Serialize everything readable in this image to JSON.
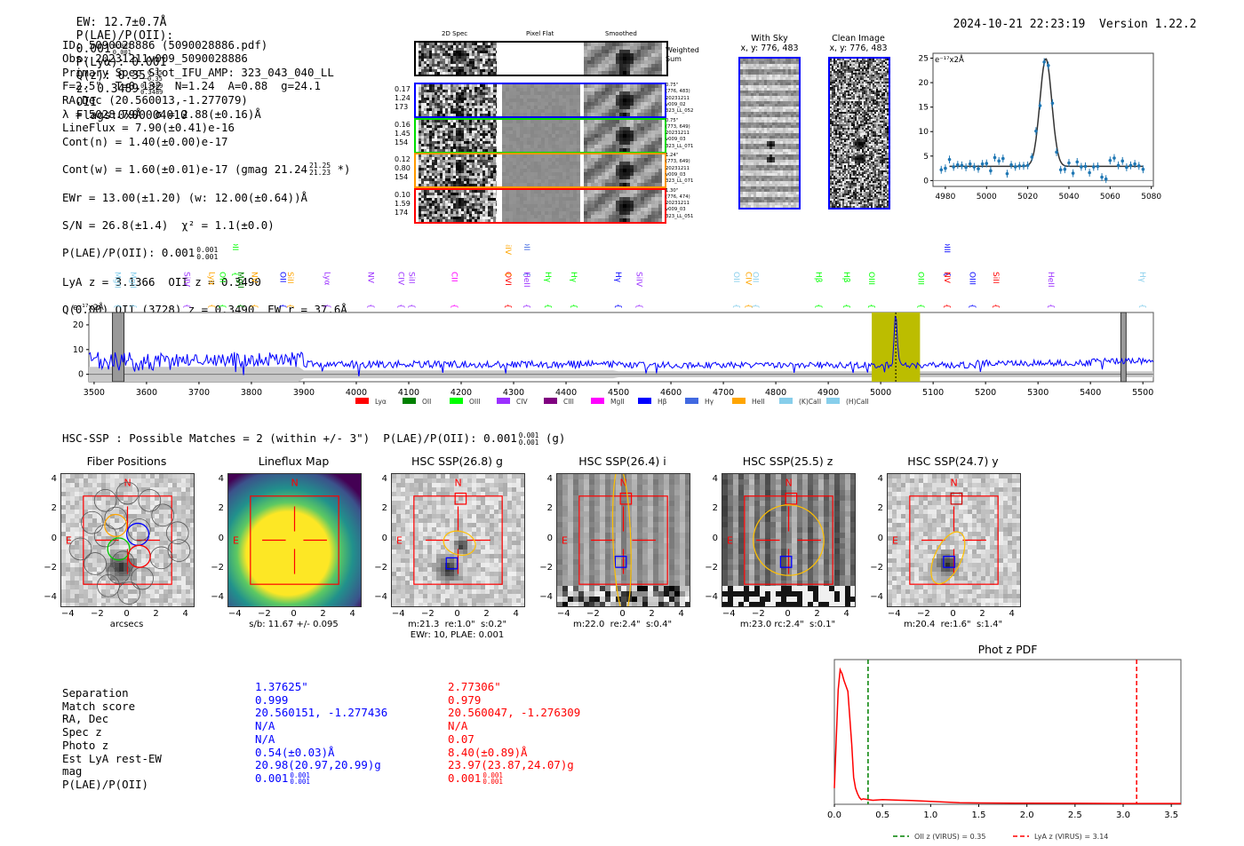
{
  "header": {
    "ew": "EW: 12.7±0.7Å",
    "plae_label": "P(LAE)/P(OII):",
    "plae_val": "0.001",
    "plae_hi": "0.001",
    "plae_lo": "0.001",
    "plya": "P(Lyα): 0.001",
    "qz_label": "Q(z): 0.35",
    "qz_hi": "0.35",
    "qz_lo": "0.35",
    "z_label": "z: 0.3489",
    "z_hi": "0.3489",
    "z_lo": "0.3489",
    "z_line": "OII",
    "flags": "Flags:0x00004010",
    "timestamp": "2024-10-21 22:23:19",
    "version": "Version 1.22.2"
  },
  "info": {
    "lines": [
      "ID: 5090028886 (5090028886.pdf)",
      "Obs: 20231211v009_5090028886",
      "Primary Spec_Slot_IFU_AMP: 323_043_040_LL",
      "F=2.5\"  T=0.132  N=1.24  A=0.88  g=24.1",
      "RA,Dec (20.560013,-1.277079)",
      "λ = 5028.79Å  σ = 2.88(±0.16)Å",
      "LineFlux = 7.90(±0.41)e-16",
      "Cont(n) = 1.40(±0.00)e-17"
    ],
    "contw": "Cont(w) = 1.60(±0.01)e-17 (gmag 21.24",
    "contw_hi": "21.25",
    "contw_lo": "21.23",
    "contw_end": "*)",
    "ewr": "EWr = 13.00(±1.20) (w: 12.00(±0.64))Å",
    "sn": "S/N = 26.8(±1.4)  χ² = 1.1(±0.0)",
    "plae": "P(LAE)/P(OII): 0.001",
    "plae_hi": "0.001",
    "plae_lo": "0.001",
    "lya": "LyA z = 3.1366  OII z = 0.3490",
    "q": "Q(0.00) OII (3728) z = 0.3490  EW r = 37.6Å"
  },
  "cutouts": {
    "col_headers": [
      "2D Spec",
      "Pixel Flat",
      "Smoothed"
    ],
    "weighted_label": "Weighted\nSum",
    "rows": [
      {
        "color": "#0000ff",
        "left": [
          "0.17",
          "1.24",
          "173"
        ],
        "right": [
          "0.75\"",
          "(776, 483)",
          "20231211",
          "v009_02",
          "323_LL_052"
        ]
      },
      {
        "color": "#00dd00",
        "left": [
          "0.16",
          "1.45",
          "154"
        ],
        "right": [
          "0.75\"",
          "(773, 649)",
          "20231211",
          "v009_03",
          "323_LL_071"
        ]
      },
      {
        "color": "#ff9900",
        "left": [
          "0.12",
          "0.80",
          "154"
        ],
        "right": [
          "1.24\"",
          "(773, 649)",
          "20231211",
          "v009_03",
          "323_LL_071"
        ]
      },
      {
        "color": "#ff0000",
        "left": [
          "0.10",
          "1.59",
          "174"
        ],
        "right": [
          "1.30\"",
          "(776, 474)",
          "20231211",
          "v009_03",
          "323_LL_051"
        ]
      }
    ]
  },
  "ccd": {
    "sky_title": "With Sky",
    "sky_xy": "x, y: 776, 483",
    "clean_title": "Clean Image",
    "clean_xy": "x, y: 776, 483"
  },
  "chart_data": [
    {
      "id": "zoom_spectrum",
      "type": "scatter",
      "title": "",
      "unit_label": "e⁻¹⁷x2Å",
      "xlim": [
        4974,
        5081
      ],
      "ylim": [
        -1.2,
        26
      ],
      "xticks": [
        4980,
        5000,
        5020,
        5040,
        5060,
        5080
      ],
      "yticks": [
        0,
        5,
        10,
        15,
        20,
        25
      ],
      "x": [
        4978,
        4980,
        4982,
        4984,
        4986,
        4988,
        4990,
        4992,
        4994,
        4996,
        4998,
        5000,
        5002,
        5004,
        5006,
        5008,
        5010,
        5012,
        5014,
        5016,
        5018,
        5020,
        5022,
        5024,
        5026,
        5028,
        5030,
        5032,
        5034,
        5036,
        5038,
        5040,
        5042,
        5044,
        5046,
        5048,
        5050,
        5052,
        5054,
        5056,
        5058,
        5060,
        5062,
        5064,
        5066,
        5068,
        5070,
        5072,
        5074,
        5076
      ],
      "y": [
        2.2,
        2.5,
        4.3,
        2.8,
        3.2,
        3.1,
        2.7,
        3.4,
        2.8,
        2.4,
        3.4,
        3.5,
        2.0,
        4.7,
        4.0,
        4.5,
        1.4,
        3.2,
        2.8,
        3.0,
        3.0,
        3.1,
        4.8,
        10.1,
        15.3,
        24.2,
        23.5,
        15.8,
        5.8,
        2.2,
        2.3,
        3.6,
        1.5,
        3.8,
        2.8,
        2.9,
        1.6,
        2.8,
        2.9,
        0.7,
        0.3,
        4.1,
        4.6,
        3.1,
        4.0,
        2.7,
        3.1,
        3.4,
        3.0,
        2.3
      ],
      "fit": {
        "center": 5028.79,
        "sigma": 2.88,
        "continuum": 2.9,
        "amplitude": 22.0
      }
    },
    {
      "id": "full_spectrum",
      "type": "line",
      "unit_label": "e⁻¹⁷x2Å",
      "xlim": [
        3490,
        5520
      ],
      "ylim": [
        -3,
        25
      ],
      "xticks": [
        3500,
        3600,
        3700,
        3800,
        3900,
        4000,
        4100,
        4200,
        4300,
        4400,
        4500,
        4600,
        4700,
        4800,
        4900,
        5000,
        5100,
        5200,
        5300,
        5400,
        5500
      ],
      "yticks": [
        0,
        10,
        20
      ],
      "highlight_band": [
        4983,
        5075
      ],
      "detected_line": 5028.79,
      "masked_bands": [
        [
          3535,
          3557
        ],
        [
          5458,
          5468
        ]
      ],
      "series_color": "#0000ff",
      "line_labels": [
        {
          "x": 3545,
          "label": "MgII",
          "color": "#87ceeb",
          "row": 1
        },
        {
          "x": 3575,
          "label": "MgII",
          "color": "#87ceeb",
          "row": 1
        },
        {
          "x": 3677,
          "label": "SiIV",
          "color": "#9b30ff",
          "row": 1
        },
        {
          "x": 3725,
          "label": "Lyα",
          "color": "#ffa500",
          "row": 1
        },
        {
          "x": 3745,
          "label": "OII",
          "color": "#00ff00",
          "row": 1
        },
        {
          "x": 3770,
          "label": "OII",
          "color": "#00ff00",
          "row": 0
        },
        {
          "x": 3780,
          "label": "MgII",
          "color": "#008000",
          "row": 1
        },
        {
          "x": 3806,
          "label": "NV",
          "color": "#ffa500",
          "row": 1
        },
        {
          "x": 3860,
          "label": "OII",
          "color": "#0000ff",
          "row": 1
        },
        {
          "x": 3875,
          "label": "SiII",
          "color": "#ffa500",
          "row": 1
        },
        {
          "x": 3945,
          "label": "Lyα",
          "color": "#9b30ff",
          "row": 1
        },
        {
          "x": 4028,
          "label": "NV",
          "color": "#9b30ff",
          "row": 1
        },
        {
          "x": 4086,
          "label": "CIV",
          "color": "#9b30ff",
          "row": 1
        },
        {
          "x": 4106,
          "label": "SiII",
          "color": "#9b30ff",
          "row": 1
        },
        {
          "x": 4187,
          "label": "CII",
          "color": "#ff00ff",
          "row": 1
        },
        {
          "x": 4290,
          "label": "OVI",
          "color": "#ff0000",
          "row": 1
        },
        {
          "x": 4290,
          "label": "SiIV",
          "color": "#ffa500",
          "row": 0
        },
        {
          "x": 4325,
          "label": "OII",
          "color": "#4169e1",
          "row": 0
        },
        {
          "x": 4325,
          "label": "HeII",
          "color": "#9b30ff",
          "row": 1
        },
        {
          "x": 4366,
          "label": "Hγ",
          "color": "#00ff00",
          "row": 1
        },
        {
          "x": 4415,
          "label": "Hγ",
          "color": "#00ff00",
          "row": 1
        },
        {
          "x": 4500,
          "label": "Hγ",
          "color": "#0000ff",
          "row": 1
        },
        {
          "x": 4540,
          "label": "SiIV",
          "color": "#9b30ff",
          "row": 1
        },
        {
          "x": 4725,
          "label": "OII",
          "color": "#87ceeb",
          "row": 1
        },
        {
          "x": 4748,
          "label": "CIV",
          "color": "#ffa500",
          "row": 1
        },
        {
          "x": 4762,
          "label": "OII",
          "color": "#87ceeb",
          "row": 1
        },
        {
          "x": 4882,
          "label": "Hβ",
          "color": "#00ff00",
          "row": 1
        },
        {
          "x": 4935,
          "label": "Hβ",
          "color": "#00ff00",
          "row": 1
        },
        {
          "x": 4983,
          "label": "OIII",
          "color": "#00ff00",
          "row": 1
        },
        {
          "x": 5077,
          "label": "OIII",
          "color": "#00ff00",
          "row": 1
        },
        {
          "x": 5127,
          "label": "OIII",
          "color": "#0000ff",
          "row": 0
        },
        {
          "x": 5127,
          "label": "NV",
          "color": "#ff0000",
          "row": 1
        },
        {
          "x": 5175,
          "label": "OIII",
          "color": "#0000ff",
          "row": 1
        },
        {
          "x": 5220,
          "label": "SiII",
          "color": "#ff0000",
          "row": 1
        },
        {
          "x": 5325,
          "label": "HeII",
          "color": "#9b30ff",
          "row": 1
        },
        {
          "x": 5500,
          "label": "Hγ",
          "color": "#87ceeb",
          "row": 1
        }
      ],
      "legend": [
        {
          "label": "Lyα",
          "color": "#ff0000"
        },
        {
          "label": "OII",
          "color": "#008000"
        },
        {
          "label": "OIII",
          "color": "#00ff00"
        },
        {
          "label": "CIV",
          "color": "#9b30ff"
        },
        {
          "label": "CIII",
          "color": "#800080"
        },
        {
          "label": "MgII",
          "color": "#ff00ff"
        },
        {
          "label": "Hβ",
          "color": "#0000ff"
        },
        {
          "label": "Hγ",
          "color": "#4169e1"
        },
        {
          "label": "HeII",
          "color": "#ffa500"
        },
        {
          "label": "(K)CaII",
          "color": "#87ceeb"
        },
        {
          "label": "(H)CaII",
          "color": "#87ceeb"
        }
      ],
      "legend_position": "bottom-center"
    },
    {
      "id": "photz_pdf",
      "type": "line",
      "title": "Phot z PDF",
      "xlim": [
        0.0,
        3.6
      ],
      "xticks": [
        0.0,
        0.5,
        1.0,
        1.5,
        2.0,
        2.5,
        3.0,
        3.5
      ],
      "x": [
        0.0,
        0.02,
        0.04,
        0.06,
        0.08,
        0.1,
        0.12,
        0.14,
        0.16,
        0.18,
        0.2,
        0.22,
        0.24,
        0.26,
        0.28,
        0.3,
        0.35,
        0.4,
        0.5,
        0.6,
        0.7,
        0.8,
        0.9,
        1.0,
        1.1,
        1.2,
        1.3,
        1.5,
        2.0,
        2.5,
        3.0,
        3.6
      ],
      "y": [
        0.12,
        0.5,
        0.85,
        1.0,
        0.97,
        0.92,
        0.88,
        0.84,
        0.65,
        0.45,
        0.2,
        0.12,
        0.08,
        0.05,
        0.035,
        0.04,
        0.035,
        0.03,
        0.035,
        0.032,
        0.03,
        0.028,
        0.025,
        0.022,
        0.018,
        0.015,
        0.012,
        0.01,
        0.008,
        0.007,
        0.006,
        0.006
      ],
      "vlines": [
        {
          "x": 0.35,
          "color": "#008000",
          "label": "OII z (VIRUS) = 0.35"
        },
        {
          "x": 3.14,
          "color": "#ff0000",
          "label": "LyA z (VIRUS) = 3.14"
        }
      ],
      "legend_position": "bottom-center"
    }
  ],
  "hsc": {
    "title": "HSC-SSP : Possible Matches = 2 (within +/- 3\")  P(LAE)/P(OII): 0.001",
    "title_hi": "0.001",
    "title_lo": "0.001",
    "title_end": "(g)",
    "panels": [
      {
        "title": "Fiber Positions",
        "caption": "arcsecs",
        "caption2": ""
      },
      {
        "title": "Lineflux Map",
        "caption": "s/b: 11.67 +/- 0.095",
        "caption2": ""
      },
      {
        "title": "HSC SSP(26.8) g",
        "caption": "m:21.3  re:1.0\"  s:0.2\"",
        "caption2": "EWr: 10, PLAE: 0.001"
      },
      {
        "title": "HSC SSP(26.4) i",
        "caption": "m:22.0  re:2.4\"  s:0.4\"",
        "caption2": ""
      },
      {
        "title": "HSC SSP(25.5) z",
        "caption": "m:23.0 rc:2.4\"  s:0.1\"",
        "caption2": ""
      },
      {
        "title": "HSC SSP(24.7) y",
        "caption": "m:20.4  re:1.6\"  s:1.4\"",
        "caption2": ""
      }
    ],
    "axis_ticks": [
      "4",
      "2",
      "0",
      "−2",
      "−4"
    ],
    "x_ticks": [
      "−4",
      "−2",
      "0",
      "2",
      "4"
    ],
    "compass_n": "N",
    "compass_e": "E"
  },
  "matches": {
    "labels": [
      "Separation",
      "Match score",
      "RA, Dec",
      "Spec z",
      "Photo z",
      "Est LyA rest-EW",
      "mag",
      "P(LAE)/P(OII)"
    ],
    "col1": {
      "color": "#0000ff",
      "values": [
        "1.37625\"",
        "0.999",
        "20.560151, -1.277436",
        "N/A",
        "N/A",
        "0.54(±0.03)Å",
        "20.98(20.97,20.99)g"
      ],
      "plae": "0.001",
      "plae_hi": "0.001",
      "plae_lo": "0.001"
    },
    "col2": {
      "color": "#ff0000",
      "values": [
        "2.77306\"",
        "0.979",
        "20.560047, -1.276309",
        "N/A",
        "0.07",
        "8.40(±0.89)Å",
        "23.97(23.87,24.07)g"
      ],
      "plae": "0.001",
      "plae_hi": "0.001",
      "plae_lo": "0.001"
    }
  }
}
